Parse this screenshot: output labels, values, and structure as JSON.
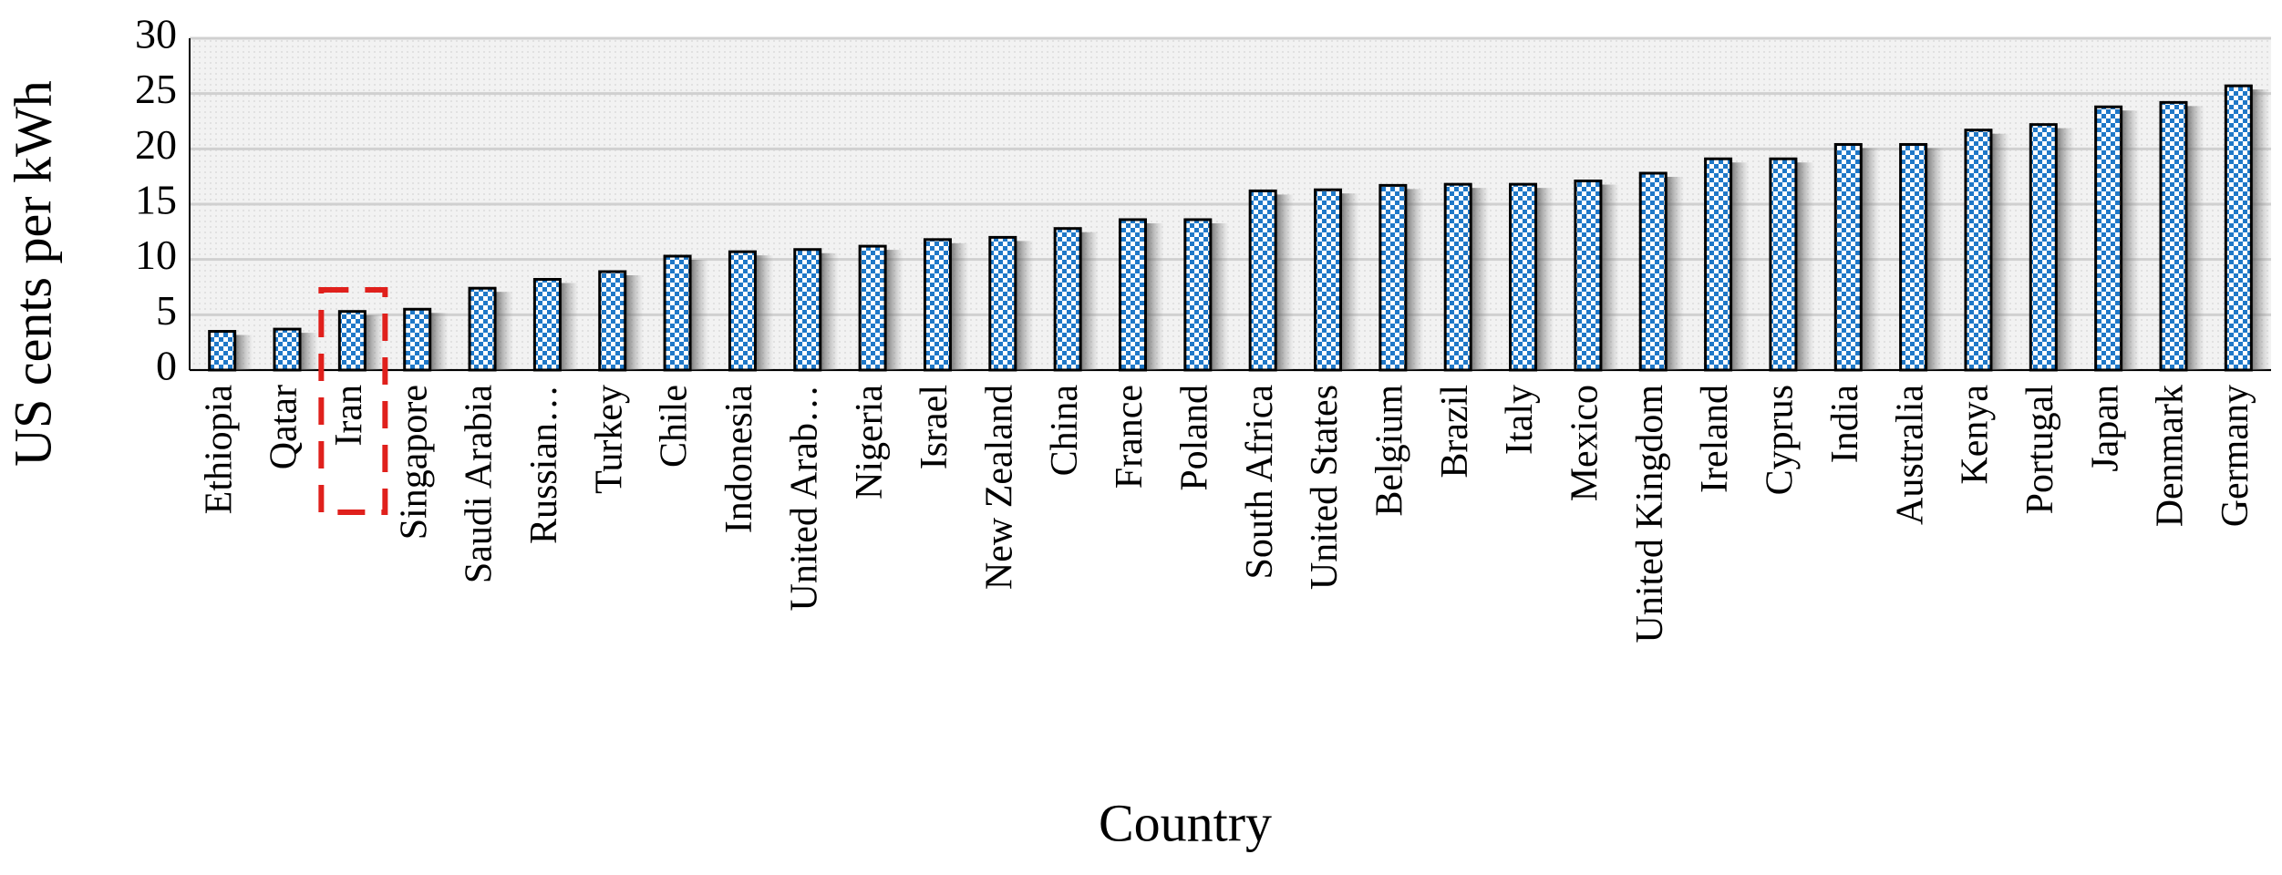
{
  "chart_data": {
    "type": "bar",
    "x_label": "Country",
    "y_label": "US cents per kWh",
    "categories": [
      "Ethiopia",
      "Qatar",
      "Iran",
      "Singapore",
      "Saudi Arabia",
      "Russian…",
      "Turkey",
      "Chile",
      "Indonesia",
      "United Arab…",
      "Nigeria",
      "Israel",
      "New Zealand",
      "China",
      "France",
      "Poland",
      "South Africa",
      "United States",
      "Belgium",
      "Brazil",
      "Italy",
      "Mexico",
      "United Kingdom",
      "Ireland",
      "Cyprus",
      "India",
      "Australia",
      "Kenya",
      "Portugal",
      "Japan",
      "Denmark",
      "Germany"
    ],
    "values": [
      3.5,
      3.7,
      5.3,
      5.5,
      7.4,
      8.2,
      8.9,
      10.3,
      10.7,
      10.9,
      11.2,
      11.8,
      12.0,
      12.8,
      13.6,
      13.6,
      16.2,
      16.3,
      16.7,
      16.8,
      16.8,
      17.1,
      17.8,
      19.1,
      19.1,
      20.4,
      20.4,
      21.7,
      22.2,
      23.8,
      24.2,
      25.7
    ],
    "color": "#1f78c8",
    "ylim": [
      0,
      30
    ],
    "yticks": [
      0,
      5,
      10,
      15,
      20,
      25,
      30
    ],
    "grid": true
  }
}
